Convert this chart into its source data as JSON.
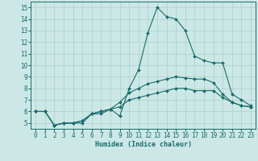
{
  "xlabel": "Humidex (Indice chaleur)",
  "xlim": [
    -0.5,
    23.5
  ],
  "ylim": [
    4.5,
    15.5
  ],
  "yticks": [
    5,
    6,
    7,
    8,
    9,
    10,
    11,
    12,
    13,
    14,
    15
  ],
  "xticks": [
    0,
    1,
    2,
    3,
    4,
    5,
    6,
    7,
    8,
    9,
    10,
    11,
    12,
    13,
    14,
    15,
    16,
    17,
    18,
    19,
    20,
    21,
    22,
    23
  ],
  "bg_color": "#cce8e6",
  "line_color": "#1a6b6b",
  "grid_color": "#aacfcc",
  "lines": [
    {
      "x": [
        0,
        1,
        2,
        3,
        4,
        5,
        6,
        7,
        8,
        9,
        10,
        11,
        12,
        13,
        14,
        15,
        16,
        17,
        18,
        19,
        20,
        21,
        22,
        23
      ],
      "y": [
        6.0,
        6.0,
        4.8,
        5.0,
        5.0,
        5.0,
        5.8,
        5.8,
        6.2,
        5.6,
        8.0,
        9.6,
        12.8,
        15.0,
        14.2,
        14.0,
        13.0,
        10.8,
        10.4,
        10.2,
        10.2,
        7.5,
        7.0,
        6.5
      ]
    },
    {
      "x": [
        0,
        1,
        2,
        3,
        4,
        5,
        6,
        7,
        8,
        9,
        10,
        11,
        12,
        13,
        14,
        15,
        16,
        17,
        18,
        19,
        20,
        21,
        22,
        23
      ],
      "y": [
        6.0,
        6.0,
        4.8,
        5.0,
        5.0,
        5.2,
        5.8,
        6.0,
        6.2,
        6.8,
        7.6,
        8.0,
        8.4,
        8.6,
        8.8,
        9.0,
        8.9,
        8.8,
        8.8,
        8.5,
        7.5,
        6.8,
        6.5,
        6.4
      ]
    },
    {
      "x": [
        0,
        1,
        2,
        3,
        4,
        5,
        6,
        7,
        8,
        9,
        10,
        11,
        12,
        13,
        14,
        15,
        16,
        17,
        18,
        19,
        20,
        21,
        22,
        23
      ],
      "y": [
        6.0,
        6.0,
        4.8,
        5.0,
        5.0,
        5.2,
        5.8,
        6.0,
        6.2,
        6.4,
        7.0,
        7.2,
        7.4,
        7.6,
        7.8,
        8.0,
        8.0,
        7.8,
        7.8,
        7.8,
        7.2,
        6.8,
        6.5,
        6.4
      ]
    }
  ]
}
